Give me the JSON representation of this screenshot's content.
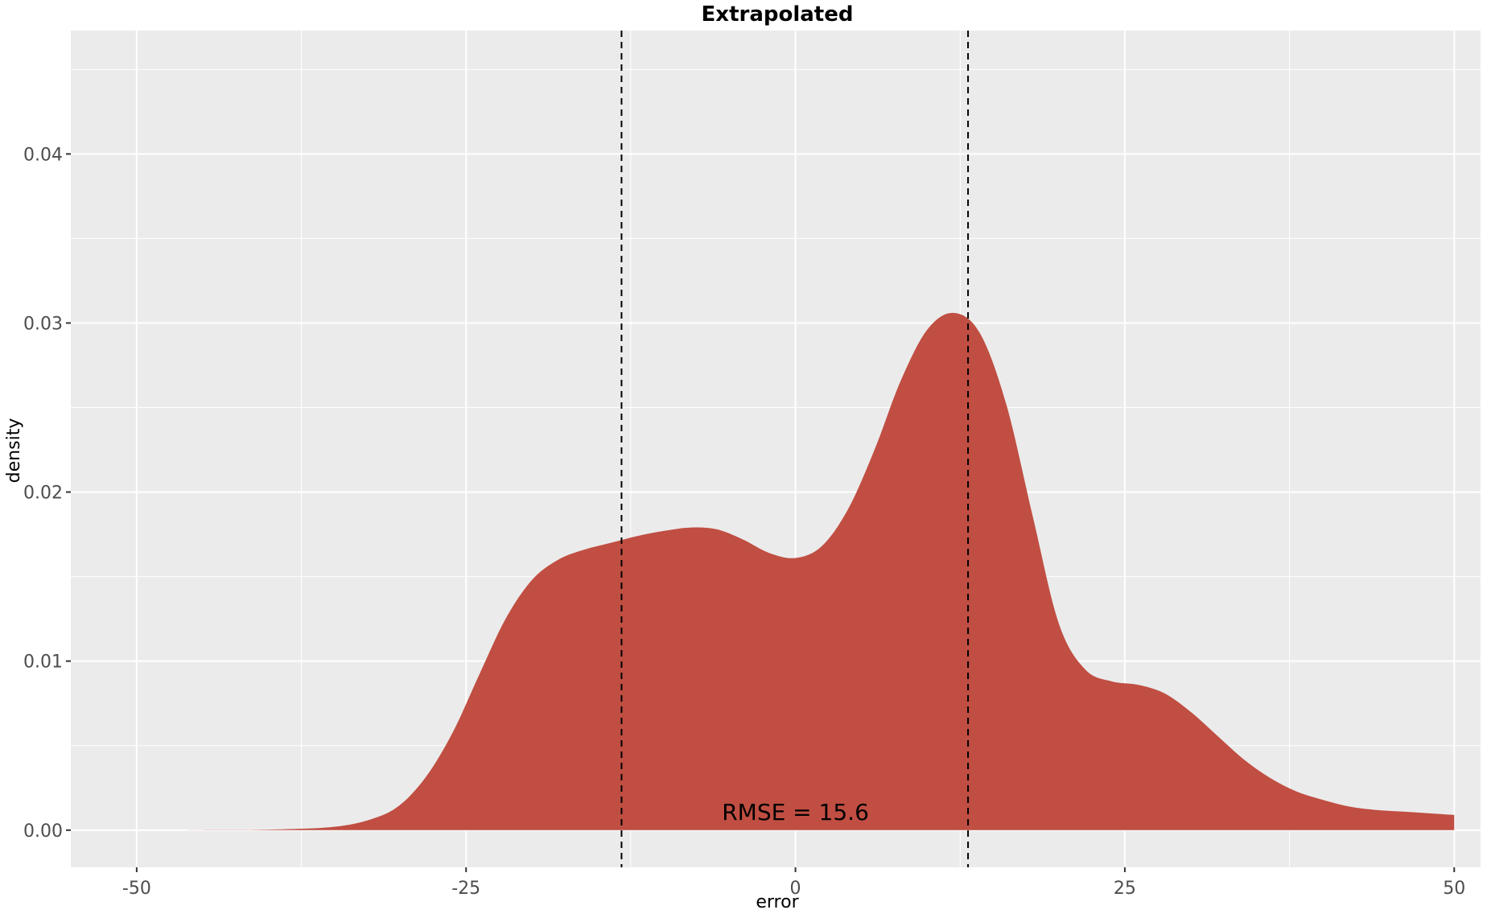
{
  "chart_data": {
    "type": "area",
    "title": "Extrapolated",
    "xlabel": "error",
    "ylabel": "density",
    "xlim": [
      -55,
      52
    ],
    "ylim": [
      -0.0022,
      0.0473
    ],
    "x_ticks": [
      -50,
      -25,
      0,
      25,
      50
    ],
    "x_tick_labels": [
      "-50",
      "-25",
      "0",
      "25",
      "50"
    ],
    "y_ticks": [
      0.0,
      0.01,
      0.02,
      0.03,
      0.04
    ],
    "y_tick_labels": [
      "0.00",
      "0.01",
      "0.02",
      "0.03",
      "0.04"
    ],
    "grid": true,
    "fill_color": "#c04e42",
    "panel_background": "#ebebeb",
    "vlines": [
      -13.2,
      13.1
    ],
    "annotation": {
      "text": "RMSE = 15.6",
      "x": 0,
      "y": 0.001
    },
    "x": [
      -50,
      -45,
      -40,
      -35,
      -32,
      -30,
      -28,
      -26,
      -24,
      -22,
      -20,
      -18,
      -16,
      -14,
      -12,
      -10,
      -8,
      -6,
      -4,
      -2,
      0,
      2,
      4,
      6,
      8,
      10,
      12,
      14,
      16,
      18,
      20,
      22,
      24,
      26,
      28,
      30,
      32,
      34,
      36,
      38,
      40,
      42,
      44,
      46,
      48,
      50
    ],
    "y": [
      0.0,
      1e-05,
      3e-05,
      0.0002,
      0.0007,
      0.0015,
      0.0032,
      0.0058,
      0.0092,
      0.0125,
      0.0148,
      0.016,
      0.0166,
      0.017,
      0.0174,
      0.0177,
      0.0179,
      0.0178,
      0.0172,
      0.0164,
      0.0161,
      0.0168,
      0.019,
      0.0225,
      0.0266,
      0.0296,
      0.0306,
      0.0294,
      0.0252,
      0.0186,
      0.0122,
      0.0095,
      0.0088,
      0.0086,
      0.0081,
      0.007,
      0.0056,
      0.0042,
      0.0031,
      0.0023,
      0.0018,
      0.0014,
      0.0012,
      0.0011,
      0.001,
      0.0009
    ]
  }
}
